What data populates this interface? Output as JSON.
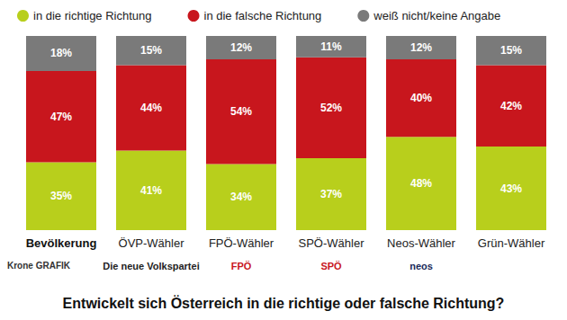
{
  "chart_data": {
    "type": "bar",
    "title": "Entwickelt sich Österreich in die richtige oder falsche Richtung?",
    "source": "Krone GRAFIK",
    "categories": [
      "Bevölkerung",
      "ÖVP-Wähler",
      "FPÖ-Wähler",
      "SPÖ-Wähler",
      "Neos-Wähler",
      "Grün-Wähler"
    ],
    "logos": [
      null,
      "Die neue Volkspartei",
      "FPÖ",
      "SPÖ",
      "neos",
      null
    ],
    "series": [
      {
        "name": "in die richtige Richtung",
        "color": "#b8cf1c",
        "values": [
          35,
          41,
          34,
          37,
          48,
          43
        ],
        "value_labels": [
          "35%",
          "41%",
          "34%",
          "37%",
          "48%",
          "43%"
        ]
      },
      {
        "name": "in die falsche Richtung",
        "color": "#c8161d",
        "values": [
          47,
          44,
          54,
          52,
          40,
          42
        ],
        "value_labels": [
          "47%",
          "44%",
          "54%",
          "52%",
          "40%",
          "42%"
        ]
      },
      {
        "name": "weiß nicht/keine Angabe",
        "color": "#7a7a7a",
        "values": [
          18,
          15,
          12,
          11,
          12,
          15
        ],
        "value_labels": [
          "18%",
          "15%",
          "12%",
          "11%",
          "12%",
          "15%"
        ]
      }
    ],
    "ylim": [
      0,
      100
    ],
    "stacked": true,
    "data_labels": true,
    "tick_labels": "x",
    "grid": false,
    "legend": "top"
  }
}
